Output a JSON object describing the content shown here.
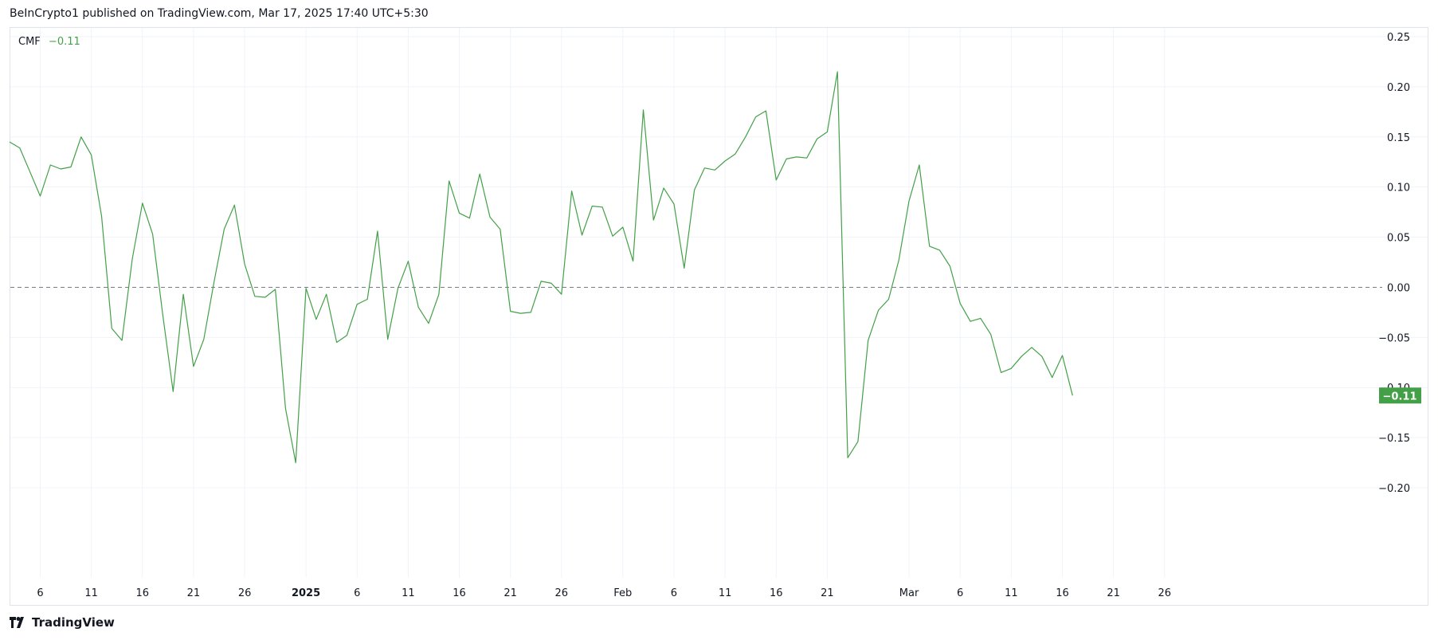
{
  "header": {
    "text": "BeInCrypto1 published on TradingView.com, Mar 17, 2025 17:40 UTC+5:30"
  },
  "legend": {
    "name": "CMF",
    "value": "−0.11"
  },
  "footer": {
    "brand": "TradingView"
  },
  "colors": {
    "line": "#43a047",
    "grid": "#f0f3fa",
    "zero_line": "#787b86",
    "badge": "#43a047"
  },
  "chart_data": {
    "type": "line",
    "title": "",
    "series": [
      {
        "name": "CMF",
        "x": [
          "2024-12-03",
          "2024-12-04",
          "2024-12-05",
          "2024-12-06",
          "2024-12-07",
          "2024-12-08",
          "2024-12-09",
          "2024-12-10",
          "2024-12-11",
          "2024-12-12",
          "2024-12-13",
          "2024-12-14",
          "2024-12-15",
          "2024-12-16",
          "2024-12-17",
          "2024-12-18",
          "2024-12-19",
          "2024-12-20",
          "2024-12-21",
          "2024-12-22",
          "2024-12-23",
          "2024-12-24",
          "2024-12-25",
          "2024-12-26",
          "2024-12-27",
          "2024-12-28",
          "2024-12-29",
          "2024-12-30",
          "2024-12-31",
          "2025-01-01",
          "2025-01-02",
          "2025-01-03",
          "2025-01-04",
          "2025-01-05",
          "2025-01-06",
          "2025-01-07",
          "2025-01-08",
          "2025-01-09",
          "2025-01-10",
          "2025-01-11",
          "2025-01-12",
          "2025-01-13",
          "2025-01-14",
          "2025-01-15",
          "2025-01-16",
          "2025-01-17",
          "2025-01-18",
          "2025-01-19",
          "2025-01-20",
          "2025-01-21",
          "2025-01-22",
          "2025-01-23",
          "2025-01-24",
          "2025-01-25",
          "2025-01-26",
          "2025-01-27",
          "2025-01-28",
          "2025-01-29",
          "2025-01-30",
          "2025-01-31",
          "2025-02-01",
          "2025-02-02",
          "2025-02-03",
          "2025-02-04",
          "2025-02-05",
          "2025-02-06",
          "2025-02-07",
          "2025-02-08",
          "2025-02-09",
          "2025-02-10",
          "2025-02-11",
          "2025-02-12",
          "2025-02-13",
          "2025-02-14",
          "2025-02-15",
          "2025-02-16",
          "2025-02-17",
          "2025-02-18",
          "2025-02-19",
          "2025-02-20",
          "2025-02-21",
          "2025-02-22",
          "2025-02-23",
          "2025-02-24",
          "2025-02-25",
          "2025-02-26",
          "2025-02-27",
          "2025-02-28",
          "2025-03-01",
          "2025-03-02",
          "2025-03-03",
          "2025-03-04",
          "2025-03-05",
          "2025-03-06",
          "2025-03-07",
          "2025-03-08",
          "2025-03-09",
          "2025-03-10",
          "2025-03-11",
          "2025-03-12",
          "2025-03-13",
          "2025-03-14",
          "2025-03-15",
          "2025-03-16",
          "2025-03-17"
        ],
        "values": [
          0.145,
          0.139,
          0.115,
          0.091,
          0.122,
          0.118,
          0.12,
          0.15,
          0.132,
          0.071,
          -0.041,
          -0.053,
          0.028,
          0.084,
          0.053,
          -0.028,
          -0.104,
          -0.007,
          -0.079,
          -0.052,
          0.005,
          0.058,
          0.082,
          0.023,
          -0.009,
          -0.01,
          -0.002,
          -0.121,
          -0.175,
          -0.001,
          -0.032,
          -0.007,
          -0.055,
          -0.048,
          -0.017,
          -0.012,
          0.056,
          -0.052,
          -0.001,
          0.026,
          -0.02,
          -0.036,
          -0.007,
          0.106,
          0.074,
          0.069,
          0.113,
          0.07,
          0.058,
          -0.024,
          -0.026,
          -0.025,
          0.006,
          0.004,
          -0.007,
          0.096,
          0.052,
          0.081,
          0.08,
          0.051,
          0.06,
          0.026,
          0.177,
          0.067,
          0.099,
          0.083,
          0.019,
          0.097,
          0.119,
          0.117,
          0.126,
          0.133,
          0.15,
          0.17,
          0.176,
          0.107,
          0.128,
          0.13,
          0.129,
          0.148,
          0.155,
          0.215,
          -0.17,
          -0.154,
          -0.053,
          -0.023,
          -0.012,
          0.027,
          0.086,
          0.122,
          0.041,
          0.037,
          0.021,
          -0.016,
          -0.034,
          -0.031,
          -0.047,
          -0.085,
          -0.081,
          -0.069,
          -0.06,
          -0.069,
          -0.09,
          -0.068,
          -0.108
        ]
      }
    ],
    "xlabel": "",
    "ylabel": "",
    "x_ticks": [
      "6",
      "11",
      "16",
      "21",
      "26",
      "2025",
      "6",
      "11",
      "16",
      "21",
      "26",
      "Feb",
      "6",
      "11",
      "16",
      "21",
      "Mar",
      "6",
      "11",
      "16",
      "21",
      "26"
    ],
    "y_ticks": [
      "0.25",
      "0.20",
      "0.15",
      "0.10",
      "0.05",
      "0.00",
      "−0.05",
      "−0.10",
      "−0.15",
      "−0.20"
    ],
    "ylim": [
      -0.22,
      0.265
    ],
    "xlim": [
      "2024-12-03",
      "2025-03-28"
    ],
    "reference_line": 0.0,
    "last_value_label": "−0.11",
    "grid": true,
    "y_axis_side": "right"
  }
}
